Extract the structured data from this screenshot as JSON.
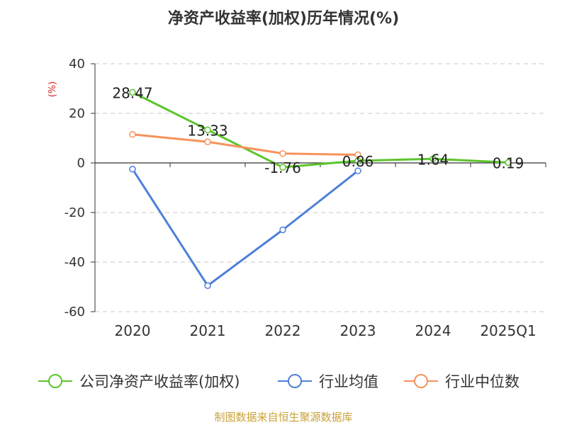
{
  "chart_data": {
    "type": "line",
    "title": "净资产收益率(加权)历年情况(%)",
    "ylabel": "(%)",
    "ylim": [
      -60,
      40
    ],
    "yticks": [
      40,
      20,
      0,
      -20,
      -40,
      -60
    ],
    "categories": [
      "2020",
      "2021",
      "2022",
      "2023",
      "2024",
      "2025Q1"
    ],
    "grid": true,
    "legend_position": "bottom",
    "series": [
      {
        "name": "公司净资产收益率(加权)",
        "color": "#5cc42c",
        "values": [
          28.47,
          13.33,
          -1.76,
          0.86,
          1.64,
          0.19
        ],
        "labels": [
          "28.47",
          "13.33",
          "-1.76",
          "0.86",
          "1.64",
          "0.19"
        ]
      },
      {
        "name": "行业均值",
        "color": "#4f7fda",
        "values": [
          -2.5,
          -49.5,
          -27.0,
          -3.2,
          null,
          null
        ]
      },
      {
        "name": "行业中位数",
        "color": "#f6925c",
        "values": [
          11.5,
          8.5,
          3.8,
          3.3,
          null,
          null
        ]
      }
    ],
    "source": "制图数据来自恒生聚源数据库"
  }
}
